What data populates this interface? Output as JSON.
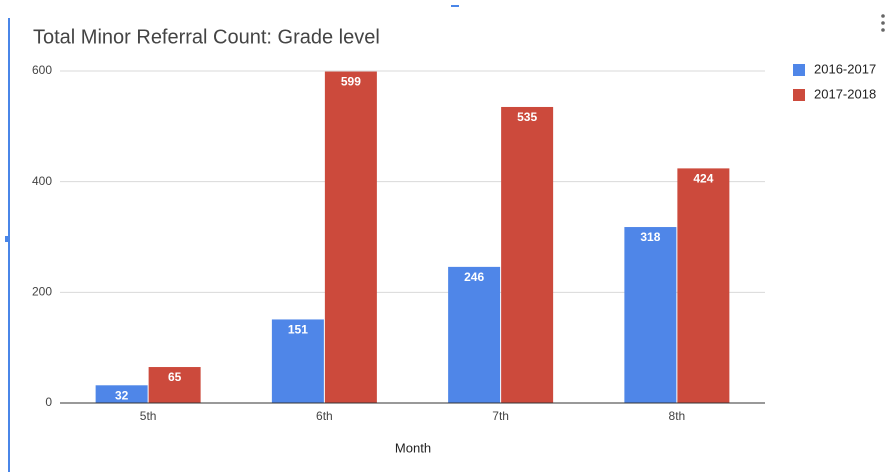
{
  "chart_data": {
    "type": "bar",
    "title": "Total Minor Referral Count: Grade level",
    "x_label": "Month",
    "categories": [
      "5th",
      "6th",
      "7th",
      "8th"
    ],
    "series": [
      {
        "name": "2016-2017",
        "color": "#4f86e8",
        "values": [
          32,
          151,
          246,
          318
        ]
      },
      {
        "name": "2017-2018",
        "color": "#cc4a3c",
        "values": [
          65,
          599,
          535,
          424
        ]
      }
    ],
    "ylim": [
      0,
      600
    ],
    "yticks": [
      0,
      200,
      400,
      600
    ],
    "grid": true,
    "legend": "right"
  }
}
